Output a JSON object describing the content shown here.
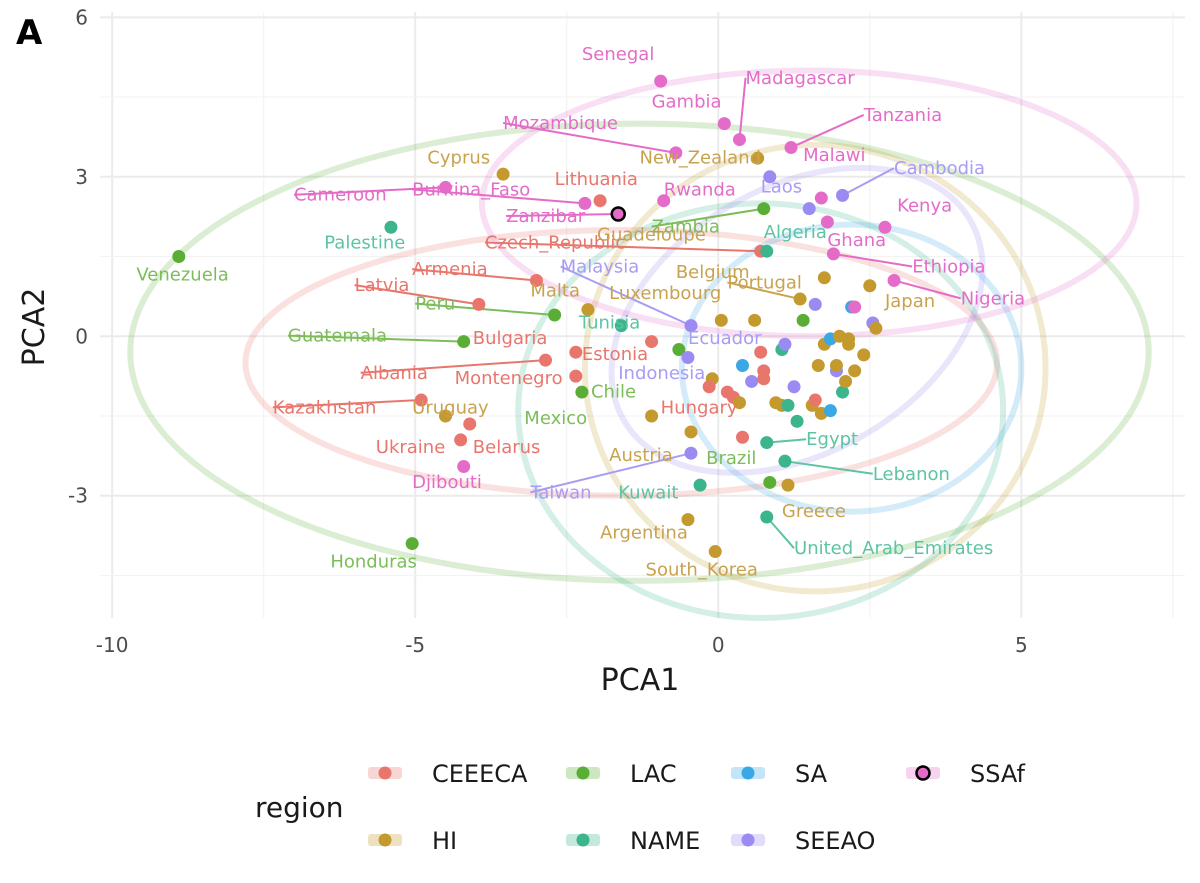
{
  "panel_tag": "A",
  "chart_data": {
    "type": "scatter",
    "xlabel": "PCA1",
    "ylabel": "PCA2",
    "xlim": [
      -10.2,
      7.7
    ],
    "ylim": [
      -5.3,
      6.1
    ],
    "x_ticks": [
      -10,
      -5,
      0,
      5
    ],
    "x_tick_labels": [
      "-10",
      "-5",
      "0",
      "5"
    ],
    "y_ticks": [
      -3,
      0,
      3,
      6
    ],
    "y_tick_labels": [
      "-3",
      "0",
      "3",
      "6"
    ],
    "grid": true,
    "legend": {
      "title": "region",
      "position": "bottom",
      "entries": [
        {
          "key": "CEEECA",
          "label": "CEEECA"
        },
        {
          "key": "LAC",
          "label": "LAC"
        },
        {
          "key": "SA",
          "label": "SA"
        },
        {
          "key": "SSAf",
          "label": "SSAf"
        },
        {
          "key": "HI",
          "label": "HI"
        },
        {
          "key": "NAME",
          "label": "NAME"
        },
        {
          "key": "SEEAO",
          "label": "SEEAO"
        }
      ]
    },
    "region_colors": {
      "CEEECA": "#E8766D",
      "HI": "#C49A2E",
      "LAC": "#5BAE35",
      "NAME": "#3CB48C",
      "SA": "#3AA8E4",
      "SEEAO": "#9A8BF3",
      "SSAf": "#E46CC8"
    },
    "label_colors": {
      "CEEECA": "#E8766D",
      "HI": "#C9A24E",
      "LAC": "#7CBD5A",
      "NAME": "#5DC4A3",
      "SA": "#3AA8E4",
      "SEEAO": "#A99CF5",
      "SSAf": "#E46CC8"
    },
    "ellipses": [
      {
        "region": "CEEECA",
        "cx": -1.6,
        "cy": -0.5,
        "rx": 6.2,
        "ry": 2.5,
        "angle": 0
      },
      {
        "region": "LAC",
        "cx": -1.3,
        "cy": -0.3,
        "rx": 8.4,
        "ry": 4.3,
        "angle": 0
      },
      {
        "region": "HI",
        "cx": 1.6,
        "cy": -0.6,
        "rx": 3.8,
        "ry": 4.2,
        "angle": 0
      },
      {
        "region": "NAME",
        "cx": 0.7,
        "cy": -1.4,
        "rx": 4.0,
        "ry": 3.9,
        "angle": 0
      },
      {
        "region": "SA",
        "cx": 2.2,
        "cy": -0.6,
        "rx": 2.8,
        "ry": 2.7,
        "angle": 0
      },
      {
        "region": "SEEAO",
        "cx": 1.3,
        "cy": 0.3,
        "rx": 3.3,
        "ry": 2.5,
        "angle": 30
      },
      {
        "region": "SSAf",
        "cx": 1.5,
        "cy": 2.5,
        "rx": 5.4,
        "ry": 2.5,
        "angle": 0
      }
    ],
    "points": [
      {
        "x": -8.9,
        "y": 1.5,
        "region": "LAC"
      },
      {
        "x": -5.4,
        "y": 2.05,
        "region": "NAME"
      },
      {
        "x": -5.05,
        "y": -3.9,
        "region": "LAC"
      },
      {
        "x": -4.5,
        "y": 2.8,
        "region": "SSAf"
      },
      {
        "x": -4.9,
        "y": -1.2,
        "region": "CEEECA"
      },
      {
        "x": -4.5,
        "y": -1.5,
        "region": "HI"
      },
      {
        "x": -4.25,
        "y": -1.95,
        "region": "CEEECA"
      },
      {
        "x": -4.1,
        "y": -1.65,
        "region": "CEEECA"
      },
      {
        "x": -4.2,
        "y": -2.45,
        "region": "SSAf"
      },
      {
        "x": -3.95,
        "y": 0.6,
        "region": "CEEECA"
      },
      {
        "x": -4.2,
        "y": -0.1,
        "region": "LAC"
      },
      {
        "x": -3.55,
        "y": 3.05,
        "region": "HI"
      },
      {
        "x": -3.0,
        "y": 1.05,
        "region": "CEEECA"
      },
      {
        "x": -2.85,
        "y": -0.45,
        "region": "CEEECA"
      },
      {
        "x": -2.7,
        "y": 0.4,
        "region": "LAC"
      },
      {
        "x": -2.2,
        "y": 2.5,
        "region": "SSAf"
      },
      {
        "x": -2.35,
        "y": -0.3,
        "region": "CEEECA"
      },
      {
        "x": -2.35,
        "y": -0.75,
        "region": "CEEECA"
      },
      {
        "x": -2.25,
        "y": -1.05,
        "region": "LAC"
      },
      {
        "x": -2.15,
        "y": 0.5,
        "region": "HI"
      },
      {
        "x": -1.95,
        "y": 2.55,
        "region": "CEEECA"
      },
      {
        "x": -1.65,
        "y": 2.3,
        "region": "SSAf",
        "highlight": true
      },
      {
        "x": -1.6,
        "y": 0.2,
        "region": "NAME"
      },
      {
        "x": -1.1,
        "y": -0.1,
        "region": "CEEECA"
      },
      {
        "x": -1.1,
        "y": -1.5,
        "region": "HI"
      },
      {
        "x": -0.95,
        "y": 4.8,
        "region": "SSAf"
      },
      {
        "x": -0.9,
        "y": 2.55,
        "region": "SSAf"
      },
      {
        "x": -0.7,
        "y": 3.45,
        "region": "SSAf"
      },
      {
        "x": -0.65,
        "y": -0.25,
        "region": "LAC"
      },
      {
        "x": -0.5,
        "y": -0.4,
        "region": "SEEAO"
      },
      {
        "x": -0.45,
        "y": -1.8,
        "region": "HI"
      },
      {
        "x": -0.45,
        "y": -2.2,
        "region": "SEEAO"
      },
      {
        "x": -0.5,
        "y": -3.45,
        "region": "HI"
      },
      {
        "x": -0.45,
        "y": 0.2,
        "region": "SEEAO"
      },
      {
        "x": -0.3,
        "y": -2.8,
        "region": "NAME"
      },
      {
        "x": -0.1,
        "y": -0.8,
        "region": "HI"
      },
      {
        "x": -0.15,
        "y": -0.95,
        "region": "CEEECA"
      },
      {
        "x": -0.05,
        "y": -4.05,
        "region": "HI"
      },
      {
        "x": 0.05,
        "y": 0.3,
        "region": "HI"
      },
      {
        "x": 0.1,
        "y": 4.0,
        "region": "SSAf"
      },
      {
        "x": 0.15,
        "y": -1.05,
        "region": "CEEECA"
      },
      {
        "x": 0.25,
        "y": -1.15,
        "region": "CEEECA"
      },
      {
        "x": 0.35,
        "y": -1.25,
        "region": "HI"
      },
      {
        "x": 0.35,
        "y": 3.7,
        "region": "SSAf"
      },
      {
        "x": 0.4,
        "y": -1.9,
        "region": "CEEECA"
      },
      {
        "x": 0.4,
        "y": -0.55,
        "region": "SA"
      },
      {
        "x": 0.55,
        "y": -0.85,
        "region": "SEEAO"
      },
      {
        "x": 0.6,
        "y": 0.3,
        "region": "HI"
      },
      {
        "x": 0.65,
        "y": 3.35,
        "region": "HI"
      },
      {
        "x": 0.7,
        "y": -0.3,
        "region": "CEEECA"
      },
      {
        "x": 0.75,
        "y": -0.65,
        "region": "CEEECA"
      },
      {
        "x": 0.75,
        "y": -0.8,
        "region": "CEEECA"
      },
      {
        "x": 0.7,
        "y": 1.6,
        "region": "CEEECA"
      },
      {
        "x": 0.75,
        "y": 2.4,
        "region": "LAC"
      },
      {
        "x": 0.8,
        "y": 1.6,
        "region": "NAME"
      },
      {
        "x": 0.8,
        "y": -2.0,
        "region": "NAME"
      },
      {
        "x": 0.85,
        "y": 3.0,
        "region": "SEEAO"
      },
      {
        "x": 0.8,
        "y": -3.4,
        "region": "NAME"
      },
      {
        "x": 0.85,
        "y": -2.75,
        "region": "LAC"
      },
      {
        "x": 0.95,
        "y": -1.25,
        "region": "HI"
      },
      {
        "x": 1.05,
        "y": -1.3,
        "region": "HI"
      },
      {
        "x": 1.05,
        "y": -0.25,
        "region": "NAME"
      },
      {
        "x": 1.1,
        "y": -0.15,
        "region": "SEEAO"
      },
      {
        "x": 1.1,
        "y": -2.35,
        "region": "NAME"
      },
      {
        "x": 1.15,
        "y": -2.8,
        "region": "HI"
      },
      {
        "x": 1.2,
        "y": 3.55,
        "region": "SSAf"
      },
      {
        "x": 1.15,
        "y": -1.3,
        "region": "NAME"
      },
      {
        "x": 1.25,
        "y": -0.95,
        "region": "SEEAO"
      },
      {
        "x": 1.3,
        "y": -1.6,
        "region": "NAME"
      },
      {
        "x": 1.35,
        "y": 0.7,
        "region": "HI"
      },
      {
        "x": 1.4,
        "y": 0.3,
        "region": "LAC"
      },
      {
        "x": 1.5,
        "y": 2.4,
        "region": "SEEAO"
      },
      {
        "x": 1.55,
        "y": -1.3,
        "region": "HI"
      },
      {
        "x": 1.6,
        "y": 0.6,
        "region": "SEEAO"
      },
      {
        "x": 1.6,
        "y": -1.2,
        "region": "CEEECA"
      },
      {
        "x": 1.65,
        "y": -0.55,
        "region": "HI"
      },
      {
        "x": 1.7,
        "y": 2.6,
        "region": "SSAf"
      },
      {
        "x": 1.7,
        "y": -1.45,
        "region": "HI"
      },
      {
        "x": 1.75,
        "y": -0.15,
        "region": "HI"
      },
      {
        "x": 1.75,
        "y": 1.1,
        "region": "HI"
      },
      {
        "x": 1.8,
        "y": 2.15,
        "region": "SSAf"
      },
      {
        "x": 1.85,
        "y": -0.05,
        "region": "SA"
      },
      {
        "x": 1.85,
        "y": -1.4,
        "region": "SA"
      },
      {
        "x": 1.9,
        "y": 1.55,
        "region": "SSAf"
      },
      {
        "x": 1.95,
        "y": -0.65,
        "region": "SEEAO"
      },
      {
        "x": 1.95,
        "y": -0.55,
        "region": "HI"
      },
      {
        "x": 2.0,
        "y": 0.0,
        "region": "HI"
      },
      {
        "x": 2.05,
        "y": 2.65,
        "region": "SEEAO"
      },
      {
        "x": 2.05,
        "y": -1.05,
        "region": "NAME"
      },
      {
        "x": 2.1,
        "y": -0.85,
        "region": "HI"
      },
      {
        "x": 2.15,
        "y": -0.15,
        "region": "HI"
      },
      {
        "x": 2.15,
        "y": -0.05,
        "region": "HI"
      },
      {
        "x": 2.2,
        "y": 0.55,
        "region": "SA"
      },
      {
        "x": 2.25,
        "y": -0.65,
        "region": "HI"
      },
      {
        "x": 2.25,
        "y": 0.55,
        "region": "SSAf"
      },
      {
        "x": 2.4,
        "y": -0.35,
        "region": "HI"
      },
      {
        "x": 2.5,
        "y": 0.95,
        "region": "HI"
      },
      {
        "x": 2.55,
        "y": 0.25,
        "region": "SEEAO"
      },
      {
        "x": 2.6,
        "y": 0.15,
        "region": "HI"
      },
      {
        "x": 2.75,
        "y": 2.05,
        "region": "SSAf"
      },
      {
        "x": 2.9,
        "y": 1.05,
        "region": "SSAf"
      }
    ],
    "labels": [
      {
        "text": "Venezuela",
        "region": "LAC",
        "x": -9.6,
        "y": 1.05
      },
      {
        "text": "Palestine",
        "region": "NAME",
        "x": -6.5,
        "y": 1.65
      },
      {
        "text": "Honduras",
        "region": "LAC",
        "x": -6.4,
        "y": -4.35
      },
      {
        "text": "Cameroon",
        "region": "SSAf",
        "x": -7.0,
        "y": 2.55,
        "px": -4.5,
        "py": 2.8
      },
      {
        "text": "Burkina_Faso",
        "region": "SSAf",
        "x": -5.05,
        "y": 2.65,
        "px": -2.2,
        "py": 2.5
      },
      {
        "text": "Zanzibar",
        "region": "SSAf",
        "x": -3.5,
        "y": 2.15,
        "px": -1.65,
        "py": 2.3
      },
      {
        "text": "Lithuania",
        "region": "CEEECA",
        "x": -2.7,
        "y": 2.85
      },
      {
        "text": "Cyprus",
        "region": "HI",
        "x": -4.8,
        "y": 3.25
      },
      {
        "text": "Senegal",
        "region": "SSAf",
        "x": -2.25,
        "y": 5.2
      },
      {
        "text": "Gambia",
        "region": "SSAf",
        "x": -1.1,
        "y": 4.3
      },
      {
        "text": "Mozambique",
        "region": "SSAf",
        "x": -3.55,
        "y": 3.9,
        "px": -0.7,
        "py": 3.45
      },
      {
        "text": "Madagascar",
        "region": "SSAf",
        "x": 0.45,
        "y": 4.75,
        "px": 0.35,
        "py": 3.7
      },
      {
        "text": "Tanzania",
        "region": "SSAf",
        "x": 2.4,
        "y": 4.05,
        "px": 1.2,
        "py": 3.55
      },
      {
        "text": "New_Zealand",
        "region": "HI",
        "x": -1.3,
        "y": 3.25
      },
      {
        "text": "Malawi",
        "region": "SSAf",
        "x": 1.4,
        "y": 3.3
      },
      {
        "text": "Rwanda",
        "region": "SSAf",
        "x": -0.9,
        "y": 2.65
      },
      {
        "text": "Laos",
        "region": "SEEAO",
        "x": 0.7,
        "y": 2.7
      },
      {
        "text": "Cambodia",
        "region": "SEEAO",
        "x": 2.9,
        "y": 3.05,
        "px": 2.05,
        "py": 2.65
      },
      {
        "text": "Kenya",
        "region": "SSAf",
        "x": 2.95,
        "y": 2.35
      },
      {
        "text": "Czech_Republic",
        "region": "CEEECA",
        "x": -3.85,
        "y": 1.65,
        "px": 0.7,
        "py": 1.6
      },
      {
        "text": "Guadeloupe",
        "region": "HI",
        "x": -2.0,
        "y": 1.8
      },
      {
        "text": "Zambia",
        "region": "LAC",
        "x": -1.1,
        "y": 1.95,
        "px": 0.75,
        "py": 2.4
      },
      {
        "text": "Algeria",
        "region": "NAME",
        "x": 0.75,
        "y": 1.85
      },
      {
        "text": "Ghana",
        "region": "SSAf",
        "x": 1.8,
        "y": 1.7
      },
      {
        "text": "Ethiopia",
        "region": "SSAf",
        "x": 3.2,
        "y": 1.2,
        "px": 1.9,
        "py": 1.55
      },
      {
        "text": "Nigeria",
        "region": "SSAf",
        "x": 4.0,
        "y": 0.6,
        "px": 2.9,
        "py": 1.05
      },
      {
        "text": "Armenia",
        "region": "CEEECA",
        "x": -5.05,
        "y": 1.15,
        "px": -3.0,
        "py": 1.05
      },
      {
        "text": "Malaysia",
        "region": "SEEAO",
        "x": -2.6,
        "y": 1.2,
        "px": -0.45,
        "py": 0.2
      },
      {
        "text": "Belgium",
        "region": "HI",
        "x": -0.7,
        "y": 1.1
      },
      {
        "text": "Portugal",
        "region": "HI",
        "x": 0.15,
        "y": 0.9,
        "px": 1.35,
        "py": 0.7
      },
      {
        "text": "Japan",
        "region": "HI",
        "x": 2.75,
        "y": 0.55
      },
      {
        "text": "Latvia",
        "region": "CEEECA",
        "x": -6.0,
        "y": 0.85,
        "px": -3.95,
        "py": 0.6
      },
      {
        "text": "Peru",
        "region": "LAC",
        "x": -5.0,
        "y": 0.5,
        "px": -2.7,
        "py": 0.4
      },
      {
        "text": "Malta",
        "region": "HI",
        "x": -3.1,
        "y": 0.75
      },
      {
        "text": "Luxembourg",
        "region": "HI",
        "x": -1.8,
        "y": 0.7
      },
      {
        "text": "Tunisia",
        "region": "NAME",
        "x": -2.3,
        "y": 0.15
      },
      {
        "text": "Guatemala",
        "region": "LAC",
        "x": -7.1,
        "y": -0.1,
        "px": -4.2,
        "py": -0.1
      },
      {
        "text": "Bulgaria",
        "region": "CEEECA",
        "x": -4.05,
        "y": -0.15
      },
      {
        "text": "Ecuador",
        "region": "SEEAO",
        "x": -0.5,
        "y": -0.15
      },
      {
        "text": "Estonia",
        "region": "CEEECA",
        "x": -2.25,
        "y": -0.45
      },
      {
        "text": "Indonesia",
        "region": "SEEAO",
        "x": -1.65,
        "y": -0.8
      },
      {
        "text": "Albania",
        "region": "CEEECA",
        "x": -5.9,
        "y": -0.8,
        "px": -2.85,
        "py": -0.45
      },
      {
        "text": "Montenegro",
        "region": "CEEECA",
        "x": -4.35,
        "y": -0.9
      },
      {
        "text": "Chile",
        "region": "LAC",
        "x": -2.1,
        "y": -1.15
      },
      {
        "text": "Kazakhstan",
        "region": "CEEECA",
        "x": -7.35,
        "y": -1.45,
        "px": -4.9,
        "py": -1.2
      },
      {
        "text": "Uruguay",
        "region": "HI",
        "x": -5.05,
        "y": -1.45
      },
      {
        "text": "Hungary",
        "region": "CEEECA",
        "x": -0.95,
        "y": -1.45
      },
      {
        "text": "Mexico",
        "region": "LAC",
        "x": -3.2,
        "y": -1.65
      },
      {
        "text": "Ukraine",
        "region": "CEEECA",
        "x": -5.65,
        "y": -2.2
      },
      {
        "text": "Belarus",
        "region": "CEEECA",
        "x": -4.05,
        "y": -2.2
      },
      {
        "text": "Egypt",
        "region": "NAME",
        "x": 1.45,
        "y": -2.05,
        "px": 0.8,
        "py": -2.0
      },
      {
        "text": "Austria",
        "region": "HI",
        "x": -1.8,
        "y": -2.35
      },
      {
        "text": "Brazil",
        "region": "LAC",
        "x": -0.2,
        "y": -2.4
      },
      {
        "text": "Djibouti",
        "region": "SSAf",
        "x": -5.05,
        "y": -2.85
      },
      {
        "text": "Lebanon",
        "region": "NAME",
        "x": 2.55,
        "y": -2.7,
        "px": 1.1,
        "py": -2.35
      },
      {
        "text": "Taiwan",
        "region": "SEEAO",
        "x": -3.1,
        "y": -3.05,
        "px": -0.45,
        "py": -2.2
      },
      {
        "text": "Kuwait",
        "region": "NAME",
        "x": -1.65,
        "y": -3.05
      },
      {
        "text": "Greece",
        "region": "HI",
        "x": 1.05,
        "y": -3.4
      },
      {
        "text": "Argentina",
        "region": "HI",
        "x": -1.95,
        "y": -3.8
      },
      {
        "text": "United_Arab_Emirates",
        "region": "NAME",
        "x": 1.25,
        "y": -4.1,
        "px": 0.8,
        "py": -3.4
      },
      {
        "text": "South_Korea",
        "region": "HI",
        "x": -1.2,
        "y": -4.5
      }
    ]
  }
}
